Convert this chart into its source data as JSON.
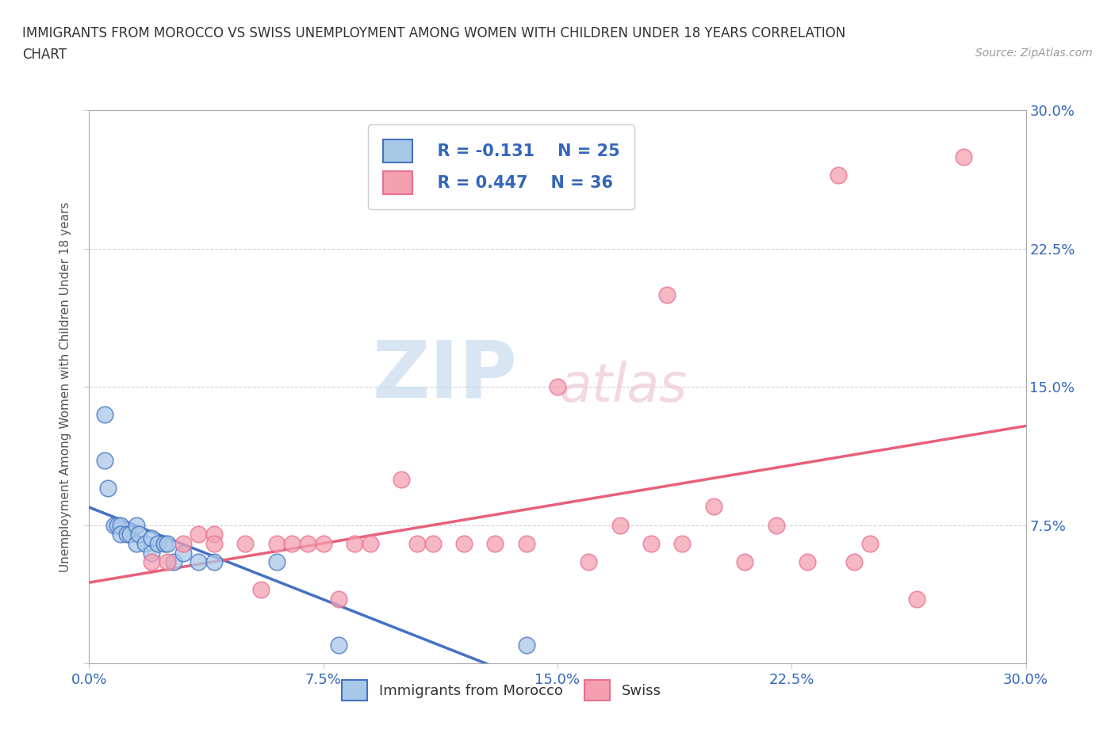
{
  "title_line1": "IMMIGRANTS FROM MOROCCO VS SWISS UNEMPLOYMENT AMONG WOMEN WITH CHILDREN UNDER 18 YEARS CORRELATION",
  "title_line2": "CHART",
  "source": "Source: ZipAtlas.com",
  "ylabel": "Unemployment Among Women with Children Under 18 years",
  "xlim": [
    0.0,
    0.3
  ],
  "ylim": [
    0.0,
    0.3
  ],
  "xticks": [
    0.0,
    0.075,
    0.15,
    0.225,
    0.3
  ],
  "yticks": [
    0.0,
    0.075,
    0.15,
    0.225,
    0.3
  ],
  "xticklabels": [
    "0.0%",
    "7.5%",
    "15.0%",
    "22.5%",
    "30.0%"
  ],
  "right_yticklabels": [
    "",
    "7.5%",
    "15.0%",
    "22.5%",
    "30.0%"
  ],
  "legend_r1": "R = -0.131",
  "legend_n1": "N = 25",
  "legend_r2": "R = 0.447",
  "legend_n2": "N = 36",
  "color_blue": "#A8C8E8",
  "color_pink": "#F4A0B0",
  "color_blue_edge": "#4472C4",
  "color_pink_edge": "#E87090",
  "color_trend_blue_solid": "#4472C4",
  "color_trend_blue_dash": "#88AACC",
  "color_trend_pink": "#E8607A",
  "watermark_zip": "ZIP",
  "watermark_atlas": "atlas",
  "blue_points": [
    [
      0.005,
      0.135
    ],
    [
      0.005,
      0.11
    ],
    [
      0.006,
      0.095
    ],
    [
      0.008,
      0.075
    ],
    [
      0.009,
      0.075
    ],
    [
      0.01,
      0.075
    ],
    [
      0.01,
      0.07
    ],
    [
      0.012,
      0.07
    ],
    [
      0.013,
      0.07
    ],
    [
      0.015,
      0.075
    ],
    [
      0.015,
      0.065
    ],
    [
      0.016,
      0.07
    ],
    [
      0.018,
      0.065
    ],
    [
      0.02,
      0.068
    ],
    [
      0.02,
      0.06
    ],
    [
      0.022,
      0.065
    ],
    [
      0.024,
      0.065
    ],
    [
      0.025,
      0.065
    ],
    [
      0.027,
      0.055
    ],
    [
      0.03,
      0.06
    ],
    [
      0.035,
      0.055
    ],
    [
      0.04,
      0.055
    ],
    [
      0.06,
      0.055
    ],
    [
      0.08,
      0.01
    ],
    [
      0.14,
      0.01
    ]
  ],
  "pink_points": [
    [
      0.02,
      0.055
    ],
    [
      0.025,
      0.055
    ],
    [
      0.03,
      0.065
    ],
    [
      0.035,
      0.07
    ],
    [
      0.04,
      0.07
    ],
    [
      0.04,
      0.065
    ],
    [
      0.05,
      0.065
    ],
    [
      0.055,
      0.04
    ],
    [
      0.06,
      0.065
    ],
    [
      0.065,
      0.065
    ],
    [
      0.07,
      0.065
    ],
    [
      0.075,
      0.065
    ],
    [
      0.08,
      0.035
    ],
    [
      0.085,
      0.065
    ],
    [
      0.09,
      0.065
    ],
    [
      0.1,
      0.1
    ],
    [
      0.105,
      0.065
    ],
    [
      0.11,
      0.065
    ],
    [
      0.12,
      0.065
    ],
    [
      0.13,
      0.065
    ],
    [
      0.14,
      0.065
    ],
    [
      0.15,
      0.15
    ],
    [
      0.16,
      0.055
    ],
    [
      0.17,
      0.075
    ],
    [
      0.18,
      0.065
    ],
    [
      0.19,
      0.065
    ],
    [
      0.2,
      0.085
    ],
    [
      0.21,
      0.055
    ],
    [
      0.22,
      0.075
    ],
    [
      0.23,
      0.055
    ],
    [
      0.245,
      0.055
    ],
    [
      0.25,
      0.065
    ],
    [
      0.265,
      0.035
    ],
    [
      0.185,
      0.2
    ],
    [
      0.24,
      0.265
    ],
    [
      0.28,
      0.275
    ]
  ]
}
